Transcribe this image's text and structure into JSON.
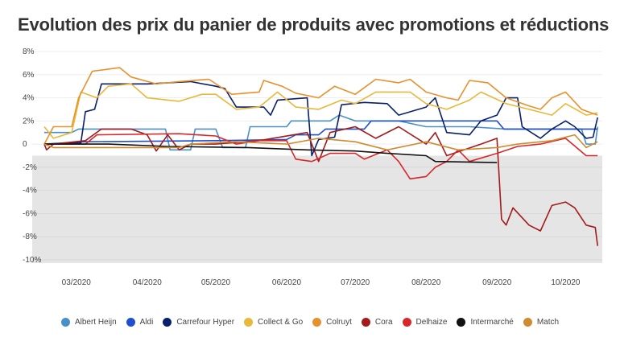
{
  "chart_data": {
    "type": "line",
    "title": "Evolution des prix du panier de produits avec promotions et réductions",
    "ylim": [
      -10,
      8
    ],
    "xlim": [
      "2020-02-16",
      "2020-10-16"
    ],
    "yticks": [
      {
        "v": 8,
        "label": "8%"
      },
      {
        "v": 6,
        "label": "6%"
      },
      {
        "v": 4,
        "label": "4%"
      },
      {
        "v": 2,
        "label": "2%"
      },
      {
        "v": 0,
        "label": "0"
      },
      {
        "v": -2,
        "label": "-2%"
      },
      {
        "v": -4,
        "label": "-4%"
      },
      {
        "v": -6,
        "label": "-6%"
      },
      {
        "v": -8,
        "label": "-8%"
      },
      {
        "v": -10,
        "label": "-10%"
      }
    ],
    "xticks": [
      {
        "d": "2020-03-01",
        "label": "03/2020"
      },
      {
        "d": "2020-04-01",
        "label": "04/2020"
      },
      {
        "d": "2020-05-01",
        "label": "05/2020"
      },
      {
        "d": "2020-06-01",
        "label": "06/2020"
      },
      {
        "d": "2020-07-01",
        "label": "07/2020"
      },
      {
        "d": "2020-08-01",
        "label": "08/2020"
      },
      {
        "d": "2020-09-01",
        "label": "09/2020"
      },
      {
        "d": "2020-10-01",
        "label": "10/2020"
      }
    ],
    "shaded_band": {
      "from": -1,
      "to": -10,
      "color": "#e5e5e5"
    },
    "grid": true,
    "legend": "bottom",
    "series": [
      {
        "name": "Albert Heijn",
        "color": "#4a90c8",
        "points": [
          [
            "2020-02-16",
            1
          ],
          [
            "2020-02-28",
            1
          ],
          [
            "2020-03-02",
            1.3
          ],
          [
            "2020-04-09",
            1.3
          ],
          [
            "2020-04-11",
            -0.5
          ],
          [
            "2020-04-20",
            -0.5
          ],
          [
            "2020-04-22",
            1.3
          ],
          [
            "2020-05-01",
            1.3
          ],
          [
            "2020-05-04",
            -0.3
          ],
          [
            "2020-05-14",
            -0.3
          ],
          [
            "2020-05-16",
            1.5
          ],
          [
            "2020-06-01",
            1.5
          ],
          [
            "2020-06-03",
            2
          ],
          [
            "2020-06-20",
            2
          ],
          [
            "2020-06-24",
            2.5
          ],
          [
            "2020-07-01",
            2
          ],
          [
            "2020-07-20",
            2
          ],
          [
            "2020-08-01",
            1.5
          ],
          [
            "2020-08-20",
            1.5
          ],
          [
            "2020-09-05",
            1.3
          ],
          [
            "2020-10-08",
            1.3
          ],
          [
            "2020-10-10",
            0
          ],
          [
            "2020-10-14",
            0
          ],
          [
            "2020-10-15",
            1.5
          ]
        ]
      },
      {
        "name": "Aldi",
        "color": "#1f4fd1",
        "points": [
          [
            "2020-02-16",
            0
          ],
          [
            "2020-03-05",
            0.2
          ],
          [
            "2020-05-01",
            0.3
          ],
          [
            "2020-06-01",
            0.4
          ],
          [
            "2020-06-05",
            0.8
          ],
          [
            "2020-06-15",
            0.8
          ],
          [
            "2020-06-18",
            1.3
          ],
          [
            "2020-07-05",
            1.3
          ],
          [
            "2020-07-08",
            2
          ],
          [
            "2020-09-01",
            2
          ],
          [
            "2020-09-04",
            1.3
          ],
          [
            "2020-10-15",
            1.3
          ]
        ]
      },
      {
        "name": "Carrefour Hyper",
        "color": "#0a1f6b",
        "points": [
          [
            "2020-02-16",
            0
          ],
          [
            "2020-03-03",
            0.1
          ],
          [
            "2020-03-05",
            2.8
          ],
          [
            "2020-03-09",
            3
          ],
          [
            "2020-03-12",
            5.2
          ],
          [
            "2020-04-01",
            5.2
          ],
          [
            "2020-04-20",
            5.4
          ],
          [
            "2020-05-01",
            5
          ],
          [
            "2020-05-05",
            4.8
          ],
          [
            "2020-05-10",
            3.2
          ],
          [
            "2020-05-22",
            3.2
          ],
          [
            "2020-05-25",
            2.5
          ],
          [
            "2020-05-28",
            3.8
          ],
          [
            "2020-06-10",
            4
          ],
          [
            "2020-06-12",
            -1
          ],
          [
            "2020-06-15",
            0.4
          ],
          [
            "2020-06-22",
            0.6
          ],
          [
            "2020-06-25",
            3.4
          ],
          [
            "2020-07-05",
            3.6
          ],
          [
            "2020-07-15",
            3.5
          ],
          [
            "2020-07-20",
            2.5
          ],
          [
            "2020-08-01",
            3.2
          ],
          [
            "2020-08-05",
            4
          ],
          [
            "2020-08-10",
            1
          ],
          [
            "2020-08-20",
            0.8
          ],
          [
            "2020-08-25",
            2
          ],
          [
            "2020-09-01",
            2.5
          ],
          [
            "2020-09-05",
            4
          ],
          [
            "2020-09-10",
            4
          ],
          [
            "2020-09-12",
            1.5
          ],
          [
            "2020-09-20",
            0.5
          ],
          [
            "2020-09-25",
            1.3
          ],
          [
            "2020-10-01",
            2
          ],
          [
            "2020-10-05",
            1.5
          ],
          [
            "2020-10-10",
            0.5
          ],
          [
            "2020-10-13",
            0.6
          ],
          [
            "2020-10-15",
            2.3
          ]
        ]
      },
      {
        "name": "Collect & Go",
        "color": "#e9b83a",
        "points": [
          [
            "2020-02-16",
            1.5
          ],
          [
            "2020-02-20",
            0.5
          ],
          [
            "2020-02-28",
            1
          ],
          [
            "2020-03-03",
            4.5
          ],
          [
            "2020-03-10",
            4
          ],
          [
            "2020-03-15",
            5
          ],
          [
            "2020-03-25",
            5.2
          ],
          [
            "2020-04-01",
            4
          ],
          [
            "2020-04-15",
            3.7
          ],
          [
            "2020-04-25",
            4.3
          ],
          [
            "2020-05-01",
            4.3
          ],
          [
            "2020-05-10",
            3
          ],
          [
            "2020-05-20",
            3.2
          ],
          [
            "2020-05-28",
            4.5
          ],
          [
            "2020-06-05",
            3.2
          ],
          [
            "2020-06-15",
            3
          ],
          [
            "2020-06-25",
            3.8
          ],
          [
            "2020-07-01",
            3.5
          ],
          [
            "2020-07-10",
            4.5
          ],
          [
            "2020-07-25",
            4.5
          ],
          [
            "2020-08-01",
            3.5
          ],
          [
            "2020-08-10",
            3
          ],
          [
            "2020-08-20",
            3.8
          ],
          [
            "2020-08-25",
            4.5
          ],
          [
            "2020-09-05",
            3.5
          ],
          [
            "2020-09-15",
            3
          ],
          [
            "2020-09-25",
            2.5
          ],
          [
            "2020-10-01",
            3.5
          ],
          [
            "2020-10-10",
            2.5
          ],
          [
            "2020-10-15",
            2.7
          ]
        ]
      },
      {
        "name": "Colruyt",
        "color": "#e8912c",
        "points": [
          [
            "2020-02-16",
            0
          ],
          [
            "2020-02-20",
            1.5
          ],
          [
            "2020-02-28",
            1.5
          ],
          [
            "2020-03-02",
            4
          ],
          [
            "2020-03-08",
            6.3
          ],
          [
            "2020-03-20",
            6.6
          ],
          [
            "2020-03-25",
            5.8
          ],
          [
            "2020-04-05",
            5.2
          ],
          [
            "2020-04-15",
            5.4
          ],
          [
            "2020-04-28",
            5.6
          ],
          [
            "2020-05-08",
            4.3
          ],
          [
            "2020-05-20",
            4.5
          ],
          [
            "2020-05-22",
            5.5
          ],
          [
            "2020-05-30",
            5
          ],
          [
            "2020-06-05",
            4.4
          ],
          [
            "2020-06-15",
            4
          ],
          [
            "2020-06-22",
            5
          ],
          [
            "2020-07-01",
            4.3
          ],
          [
            "2020-07-10",
            5.6
          ],
          [
            "2020-07-20",
            5.3
          ],
          [
            "2020-07-25",
            5.6
          ],
          [
            "2020-08-01",
            4.5
          ],
          [
            "2020-08-10",
            4
          ],
          [
            "2020-08-15",
            3.8
          ],
          [
            "2020-08-20",
            5.5
          ],
          [
            "2020-08-28",
            5.3
          ],
          [
            "2020-09-05",
            4
          ],
          [
            "2020-09-15",
            3.3
          ],
          [
            "2020-09-20",
            3
          ],
          [
            "2020-09-25",
            4
          ],
          [
            "2020-10-01",
            4.5
          ],
          [
            "2020-10-08",
            3
          ],
          [
            "2020-10-15",
            2.5
          ]
        ]
      },
      {
        "name": "Cora",
        "color": "#a31b1b",
        "points": [
          [
            "2020-02-16",
            0
          ],
          [
            "2020-02-17",
            -0.5
          ],
          [
            "2020-02-20",
            0
          ],
          [
            "2020-03-05",
            0.3
          ],
          [
            "2020-03-12",
            1.3
          ],
          [
            "2020-03-25",
            1.3
          ],
          [
            "2020-04-01",
            0.8
          ],
          [
            "2020-04-05",
            -0.6
          ],
          [
            "2020-04-10",
            0.8
          ],
          [
            "2020-04-15",
            -0.5
          ],
          [
            "2020-04-20",
            0
          ],
          [
            "2020-05-01",
            0
          ],
          [
            "2020-05-20",
            0.3
          ],
          [
            "2020-06-10",
            1
          ],
          [
            "2020-06-15",
            -1.5
          ],
          [
            "2020-06-20",
            1
          ],
          [
            "2020-07-01",
            1.5
          ],
          [
            "2020-07-10",
            0.5
          ],
          [
            "2020-07-20",
            1.5
          ],
          [
            "2020-08-01",
            0
          ],
          [
            "2020-08-05",
            1
          ],
          [
            "2020-08-10",
            -1
          ],
          [
            "2020-08-25",
            0
          ],
          [
            "2020-09-01",
            0.5
          ],
          [
            "2020-09-03",
            -6.5
          ],
          [
            "2020-09-05",
            -7
          ],
          [
            "2020-09-08",
            -5.5
          ],
          [
            "2020-09-15",
            -7
          ],
          [
            "2020-09-20",
            -7.5
          ],
          [
            "2020-09-25",
            -5.3
          ],
          [
            "2020-10-01",
            -5
          ],
          [
            "2020-10-05",
            -5.5
          ],
          [
            "2020-10-10",
            -7
          ],
          [
            "2020-10-14",
            -7.2
          ],
          [
            "2020-10-15",
            -8.8
          ]
        ]
      },
      {
        "name": "Delhaize",
        "color": "#d8262b",
        "points": [
          [
            "2020-02-16",
            0
          ],
          [
            "2020-03-05",
            0
          ],
          [
            "2020-03-10",
            0.8
          ],
          [
            "2020-04-15",
            0.9
          ],
          [
            "2020-05-01",
            0.7
          ],
          [
            "2020-05-10",
            0
          ],
          [
            "2020-05-20",
            0.3
          ],
          [
            "2020-06-01",
            0.3
          ],
          [
            "2020-06-05",
            -1.3
          ],
          [
            "2020-06-12",
            -1.5
          ],
          [
            "2020-06-20",
            -0.8
          ],
          [
            "2020-07-01",
            -0.8
          ],
          [
            "2020-07-05",
            -1.3
          ],
          [
            "2020-07-15",
            -0.5
          ],
          [
            "2020-07-20",
            -1.5
          ],
          [
            "2020-07-25",
            -3
          ],
          [
            "2020-08-01",
            -2.8
          ],
          [
            "2020-08-05",
            -2
          ],
          [
            "2020-08-10",
            -1.5
          ],
          [
            "2020-08-15",
            -0.5
          ],
          [
            "2020-08-20",
            -1.5
          ],
          [
            "2020-09-01",
            -0.8
          ],
          [
            "2020-09-10",
            -0.2
          ],
          [
            "2020-09-20",
            0
          ],
          [
            "2020-10-01",
            0.5
          ],
          [
            "2020-10-10",
            -1
          ],
          [
            "2020-10-15",
            -1
          ]
        ]
      },
      {
        "name": "Intermarché",
        "color": "#111111",
        "points": [
          [
            "2020-02-16",
            0
          ],
          [
            "2020-03-15",
            0
          ],
          [
            "2020-04-10",
            -0.2
          ],
          [
            "2020-05-15",
            -0.3
          ],
          [
            "2020-06-10",
            -0.5
          ],
          [
            "2020-07-01",
            -0.6
          ],
          [
            "2020-07-15",
            -0.8
          ],
          [
            "2020-08-01",
            -1
          ],
          [
            "2020-08-05",
            -1.5
          ],
          [
            "2020-09-01",
            -1.6
          ]
        ]
      },
      {
        "name": "Match",
        "color": "#d08a30",
        "points": [
          [
            "2020-02-16",
            0
          ],
          [
            "2020-02-20",
            -0.3
          ],
          [
            "2020-04-15",
            -0.3
          ],
          [
            "2020-04-20",
            0
          ],
          [
            "2020-05-10",
            0.2
          ],
          [
            "2020-06-01",
            0
          ],
          [
            "2020-06-15",
            0.5
          ],
          [
            "2020-07-01",
            0.2
          ],
          [
            "2020-07-15",
            -0.5
          ],
          [
            "2020-08-01",
            0.2
          ],
          [
            "2020-08-15",
            -0.5
          ],
          [
            "2020-09-01",
            -0.3
          ],
          [
            "2020-09-10",
            0
          ],
          [
            "2020-09-25",
            0.3
          ],
          [
            "2020-10-05",
            0.8
          ],
          [
            "2020-10-10",
            -0.3
          ],
          [
            "2020-10-15",
            0.2
          ]
        ]
      }
    ]
  }
}
